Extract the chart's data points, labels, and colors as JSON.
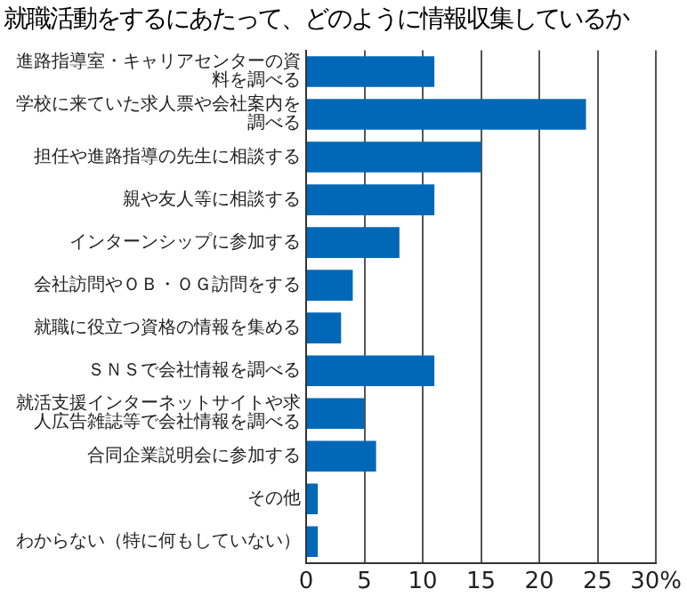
{
  "chart_data": {
    "type": "bar",
    "orientation": "horizontal",
    "title": "就職活動をするにあたって、どのように情報収集しているか",
    "categories": [
      "進路指導室・キャリアセンターの資料を調べる",
      "学校に来ていた求人票や会社案内を調べる",
      "担任や進路指導の先生に相談する",
      "親や友人等に相談する",
      "インターンシップに参加する",
      "会社訪問やＯＢ・ＯＧ訪問をする",
      "就職に役立つ資格の情報を集める",
      "ＳＮＳで会社情報を調べる",
      "就活支援インターネットサイトや求人広告雑誌等で会社情報を調べる",
      "合同企業説明会に参加する",
      "その他",
      "わからない（特に何もしていない）"
    ],
    "values": [
      11,
      24,
      15,
      11,
      8,
      4,
      3,
      11,
      5,
      6,
      1,
      1
    ],
    "color": "#0068b7",
    "xlim": [
      0,
      30
    ],
    "xticks": [
      0,
      5,
      10,
      15,
      20,
      25,
      {
        "value": 30,
        "label": "30%"
      }
    ],
    "grid": "x"
  }
}
